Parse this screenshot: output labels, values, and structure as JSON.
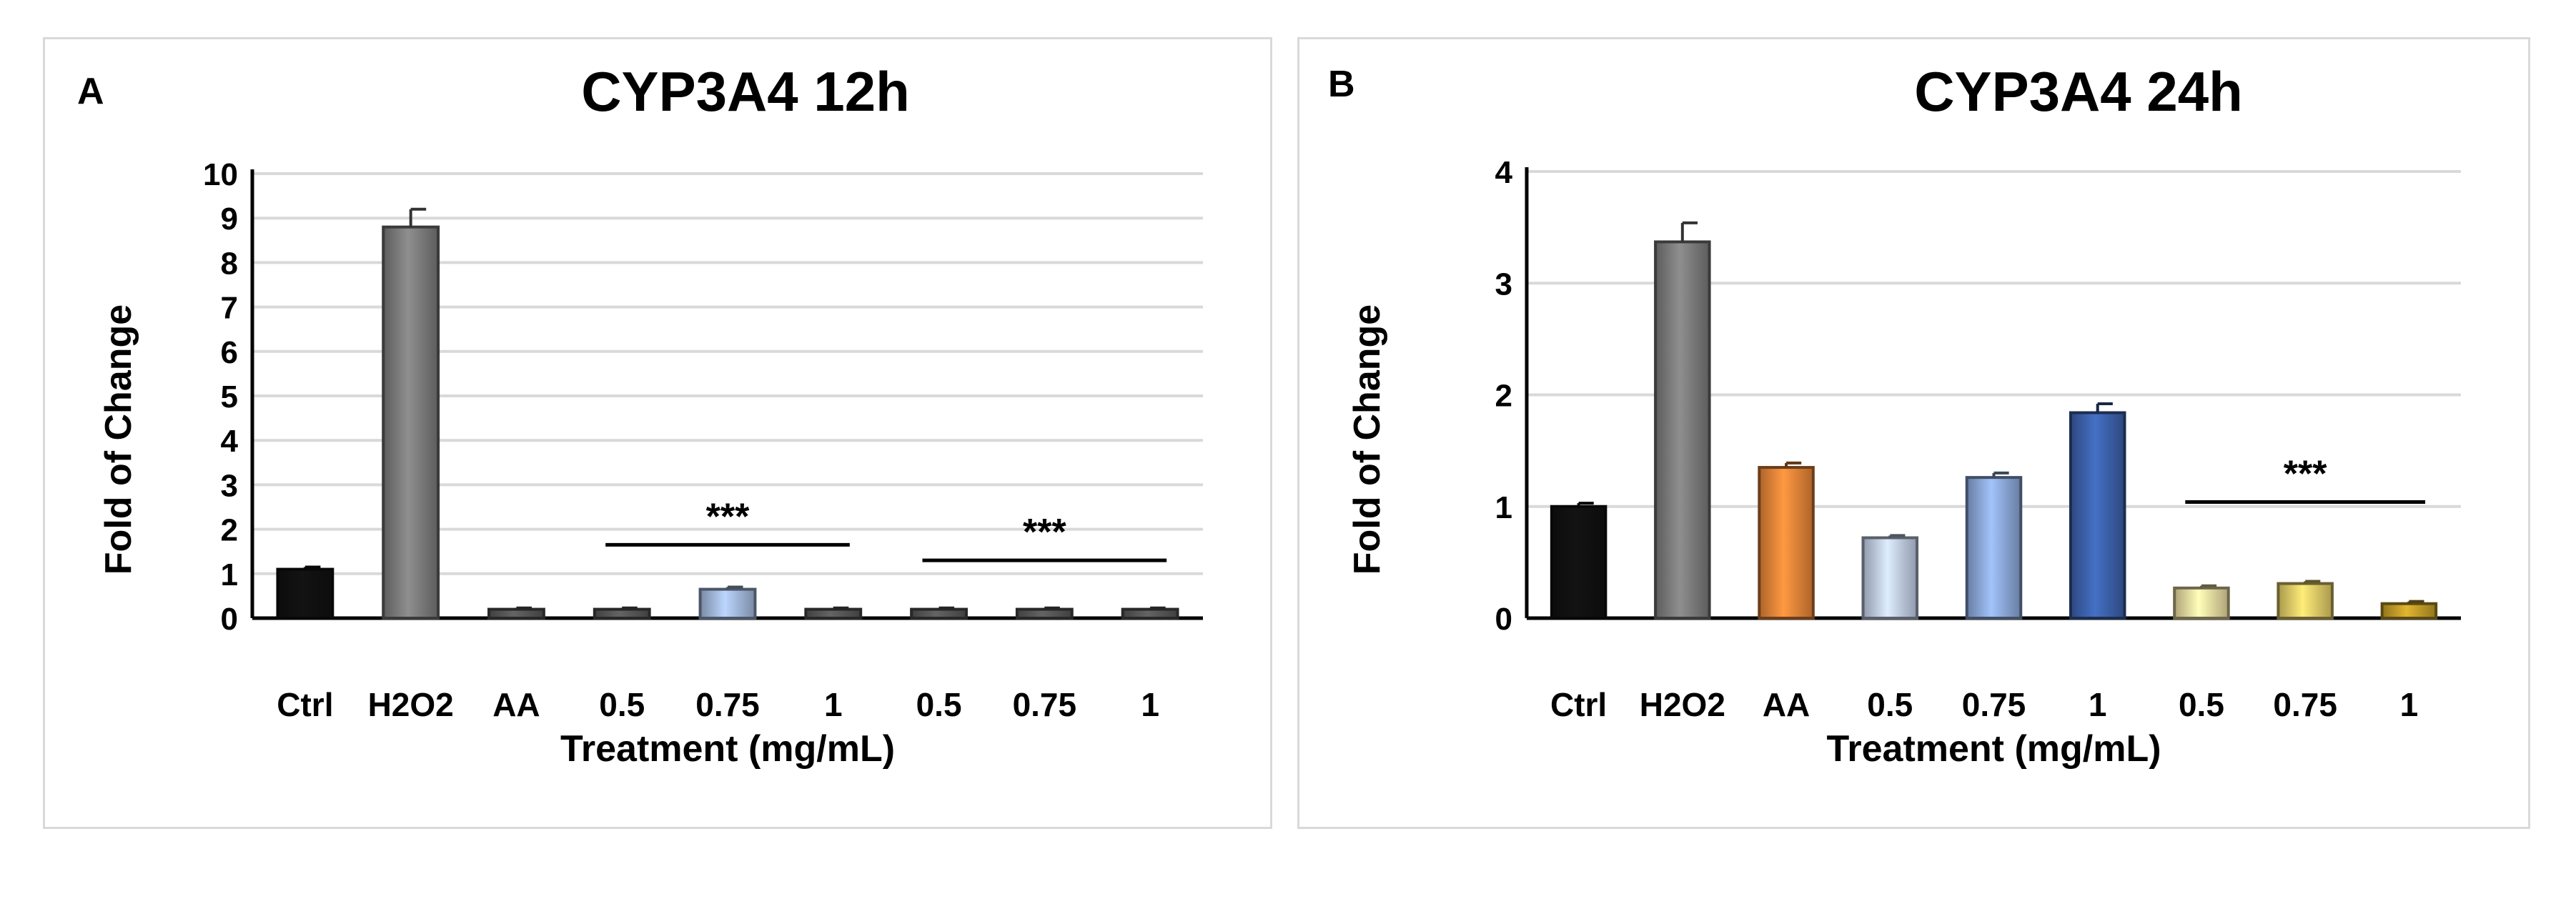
{
  "chart_data": [
    {
      "panel_label": "A",
      "type": "bar",
      "title": "CYP3A4 12h",
      "xlabel": "Treatment (mg/mL)",
      "ylabel": "Fold of Change",
      "ylim": [
        0,
        10
      ],
      "yticks": [
        "0",
        "1",
        "2",
        "3",
        "4",
        "5",
        "6",
        "7",
        "8",
        "9",
        "10"
      ],
      "grid": true,
      "categories": [
        "Ctrl",
        "H2O2",
        "AA",
        "0.5",
        "0.75",
        "1",
        "0.5",
        "0.75",
        "1"
      ],
      "values": [
        1.1,
        8.8,
        0.2,
        0.2,
        0.65,
        0.2,
        0.2,
        0.2,
        0.2
      ],
      "errors": [
        0.05,
        0.4,
        0.03,
        0.03,
        0.05,
        0.03,
        0.03,
        0.03,
        0.03
      ],
      "colors": [
        "#111111",
        "#808080",
        "#595959",
        "#595959",
        "#a8bfe3",
        "#595959",
        "#595959",
        "#595959",
        "#595959"
      ],
      "annotations": [
        {
          "text": "***",
          "from": 3,
          "to": 5,
          "y": 1.65
        },
        {
          "text": "***",
          "from": 6,
          "to": 8,
          "y": 1.3
        }
      ]
    },
    {
      "panel_label": "B",
      "type": "bar",
      "title": "CYP3A4 24h",
      "xlabel": "Treatment (mg/mL)",
      "ylabel": "Fold of Change",
      "ylim": [
        0,
        4
      ],
      "yticks": [
        "0",
        "1",
        "2",
        "3",
        "4"
      ],
      "grid": true,
      "categories": [
        "Ctrl",
        "H2O2",
        "AA",
        "0.5",
        "0.75",
        "1",
        "0.5",
        "0.75",
        "1"
      ],
      "values": [
        1.0,
        3.37,
        1.35,
        0.72,
        1.26,
        1.84,
        0.27,
        0.31,
        0.13
      ],
      "errors": [
        0.03,
        0.17,
        0.04,
        0.02,
        0.04,
        0.08,
        0.02,
        0.02,
        0.02
      ],
      "colors": [
        "#111111",
        "#808080",
        "#f0893a",
        "#c6d4ee",
        "#91aee0",
        "#3e64b0",
        "#f3e3a6",
        "#ebd46b",
        "#c9a22a"
      ],
      "annotations": [
        {
          "text": "***",
          "from": 6,
          "to": 8,
          "y": 1.04
        }
      ]
    }
  ]
}
